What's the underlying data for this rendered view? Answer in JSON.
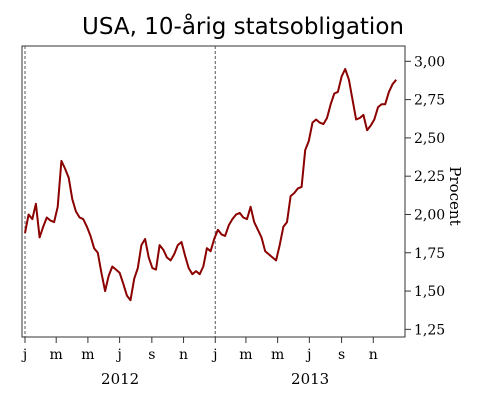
{
  "chart_data": {
    "type": "line",
    "title": "USA, 10-årig statsobligation",
    "ylabel": "Procent",
    "ylim": [
      1.2,
      3.1
    ],
    "y_ticks": [
      "3,00",
      "2,75",
      "2,50",
      "2,25",
      "2,00",
      "1,75",
      "1,50",
      "1,25"
    ],
    "y_tick_values": [
      3.0,
      2.75,
      2.5,
      2.25,
      2.0,
      1.75,
      1.5,
      1.25
    ],
    "x_month_labels": [
      "j",
      "m",
      "m",
      "j",
      "s",
      "n",
      "j",
      "m",
      "m",
      "j",
      "s",
      "n"
    ],
    "x_year_labels": [
      "2012",
      "2013"
    ],
    "x_range": [
      "2012-01",
      "2013-12"
    ],
    "year_dividers": [
      "2012-01",
      "2013-01"
    ],
    "grid": false,
    "legend": "none",
    "line_color": "#8b0000",
    "series": [
      {
        "x": [
          "2012-01-01",
          "2012-01-08",
          "2012-01-15",
          "2012-01-22",
          "2012-01-29",
          "2012-02-05",
          "2012-02-12",
          "2012-02-19",
          "2012-02-26",
          "2012-03-04",
          "2012-03-11",
          "2012-03-18",
          "2012-03-25",
          "2012-04-01",
          "2012-04-08",
          "2012-04-15",
          "2012-04-22",
          "2012-04-29",
          "2012-05-06",
          "2012-05-13",
          "2012-05-20",
          "2012-05-27",
          "2012-06-03",
          "2012-06-10",
          "2012-06-17",
          "2012-06-24",
          "2012-07-01",
          "2012-07-08",
          "2012-07-15",
          "2012-07-22",
          "2012-07-29",
          "2012-08-05",
          "2012-08-12",
          "2012-08-19",
          "2012-08-26",
          "2012-09-02",
          "2012-09-09",
          "2012-09-16",
          "2012-09-23",
          "2012-09-30",
          "2012-10-07",
          "2012-10-14",
          "2012-10-21",
          "2012-10-28",
          "2012-11-04",
          "2012-11-11",
          "2012-11-18",
          "2012-11-25",
          "2012-12-02",
          "2012-12-09",
          "2012-12-16",
          "2012-12-23",
          "2012-12-30",
          "2013-01-06",
          "2013-01-13",
          "2013-01-20",
          "2013-01-27",
          "2013-02-03",
          "2013-02-10",
          "2013-02-17",
          "2013-02-24",
          "2013-03-03",
          "2013-03-10",
          "2013-03-17",
          "2013-03-24",
          "2013-03-31",
          "2013-04-07",
          "2013-04-14",
          "2013-04-21",
          "2013-04-28",
          "2013-05-05",
          "2013-05-12",
          "2013-05-19",
          "2013-05-26",
          "2013-06-02",
          "2013-06-09",
          "2013-06-16",
          "2013-06-23",
          "2013-06-30",
          "2013-07-07",
          "2013-07-14",
          "2013-07-21",
          "2013-07-28",
          "2013-08-04",
          "2013-08-11",
          "2013-08-18",
          "2013-08-25",
          "2013-09-01",
          "2013-09-08",
          "2013-09-15",
          "2013-09-22",
          "2013-09-29",
          "2013-10-06",
          "2013-10-13",
          "2013-10-20",
          "2013-10-27",
          "2013-11-03",
          "2013-11-10",
          "2013-11-17",
          "2013-11-24",
          "2013-12-01",
          "2013-12-08",
          "2013-12-15"
        ],
        "values": [
          1.88,
          2.0,
          1.97,
          2.07,
          1.85,
          1.92,
          1.98,
          1.96,
          1.95,
          2.05,
          2.35,
          2.3,
          2.24,
          2.1,
          2.02,
          1.98,
          1.97,
          1.92,
          1.86,
          1.78,
          1.75,
          1.62,
          1.5,
          1.6,
          1.66,
          1.64,
          1.62,
          1.55,
          1.47,
          1.44,
          1.58,
          1.65,
          1.8,
          1.84,
          1.72,
          1.65,
          1.64,
          1.8,
          1.77,
          1.72,
          1.7,
          1.74,
          1.8,
          1.82,
          1.73,
          1.65,
          1.61,
          1.63,
          1.61,
          1.66,
          1.78,
          1.76,
          1.84,
          1.9,
          1.87,
          1.86,
          1.93,
          1.97,
          2.0,
          2.01,
          1.98,
          1.97,
          2.05,
          1.95,
          1.9,
          1.85,
          1.76,
          1.74,
          1.72,
          1.7,
          1.8,
          1.92,
          1.95,
          2.12,
          2.14,
          2.17,
          2.18,
          2.42,
          2.48,
          2.6,
          2.62,
          2.6,
          2.59,
          2.63,
          2.72,
          2.79,
          2.8,
          2.9,
          2.95,
          2.88,
          2.75,
          2.62,
          2.63,
          2.65,
          2.55,
          2.58,
          2.62,
          2.7,
          2.72,
          2.72,
          2.8,
          2.85,
          2.88
        ]
      }
    ]
  }
}
